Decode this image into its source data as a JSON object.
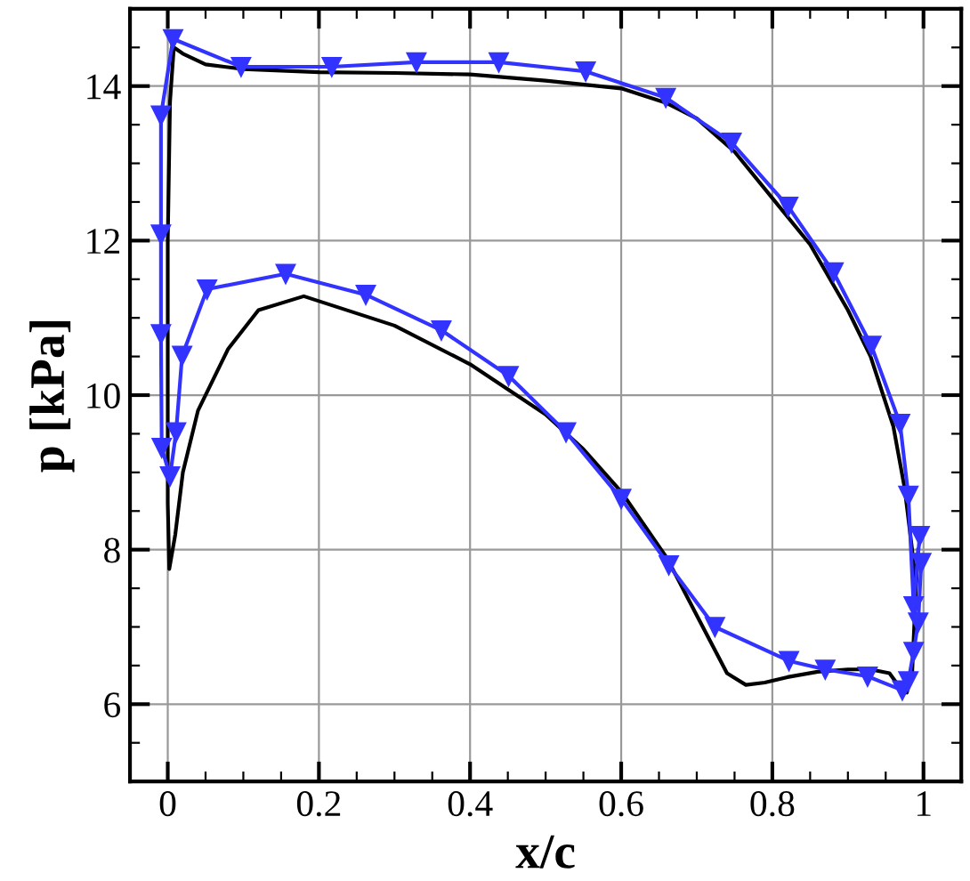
{
  "chart_data": {
    "type": "line",
    "xlabel": "x/c",
    "ylabel": "p [kPa]",
    "xlim": [
      -0.05,
      1.05
    ],
    "ylim": [
      5,
      15
    ],
    "xticks": [
      0,
      0.2,
      0.4,
      0.6,
      0.8,
      1
    ],
    "yticks": [
      6,
      8,
      10,
      12,
      14
    ],
    "grid": true,
    "line_style": "solid",
    "series": [
      {
        "color": "#000000",
        "marker": "none",
        "x": [
          0.99,
          0.985,
          0.978,
          0.97,
          0.955,
          0.93,
          0.9,
          0.86,
          0.82,
          0.79,
          0.765,
          0.74,
          0.7,
          0.66,
          0.6,
          0.55,
          0.5,
          0.4,
          0.3,
          0.18,
          0.12,
          0.08,
          0.04,
          0.02,
          0.01,
          0.002,
          0.0,
          0.0,
          0.0,
          0.003,
          0.008,
          0.02,
          0.05,
          0.1,
          0.2,
          0.3,
          0.4,
          0.5,
          0.6,
          0.66,
          0.7,
          0.75,
          0.8,
          0.85,
          0.9,
          0.93,
          0.96,
          0.975,
          0.985,
          0.99,
          0.993
        ],
        "values": [
          7.5,
          6.4,
          6.15,
          6.2,
          6.4,
          6.45,
          6.45,
          6.42,
          6.35,
          6.28,
          6.25,
          6.4,
          7.15,
          7.9,
          8.75,
          9.3,
          9.75,
          10.4,
          10.9,
          11.28,
          11.1,
          10.6,
          9.8,
          9.0,
          8.2,
          7.75,
          8.6,
          10,
          12,
          13.8,
          14.5,
          14.42,
          14.28,
          14.22,
          14.18,
          14.17,
          14.15,
          14.07,
          13.97,
          13.78,
          13.58,
          13.15,
          12.55,
          11.95,
          11.1,
          10.5,
          9.6,
          8.8,
          8.0,
          7.5,
          8.0
        ]
      },
      {
        "color": "#3333ff",
        "marker": "triangle",
        "x": [
          0.997,
          0.993,
          0.987,
          0.98,
          0.972,
          0.926,
          0.87,
          0.822,
          0.724,
          0.663,
          0.6,
          0.527,
          0.451,
          0.362,
          0.262,
          0.156,
          0.052,
          0.019,
          0.011,
          0.003,
          -0.008,
          -0.009,
          -0.009,
          -0.009,
          0.007,
          0.097,
          0.217,
          0.329,
          0.438,
          0.553,
          0.659,
          0.746,
          0.821,
          0.881,
          0.931,
          0.969,
          0.98,
          0.987,
          0.995
        ],
        "values": [
          7.83,
          7.06,
          6.68,
          6.3,
          6.18,
          6.36,
          6.45,
          6.56,
          7.0,
          7.8,
          8.66,
          9.52,
          10.25,
          10.84,
          11.3,
          11.57,
          11.37,
          10.51,
          9.52,
          8.95,
          9.32,
          10.79,
          12.08,
          13.62,
          14.61,
          14.25,
          14.25,
          14.31,
          14.31,
          14.19,
          13.85,
          13.27,
          12.44,
          11.59,
          10.64,
          9.63,
          8.7,
          7.27,
          8.18
        ]
      }
    ]
  }
}
